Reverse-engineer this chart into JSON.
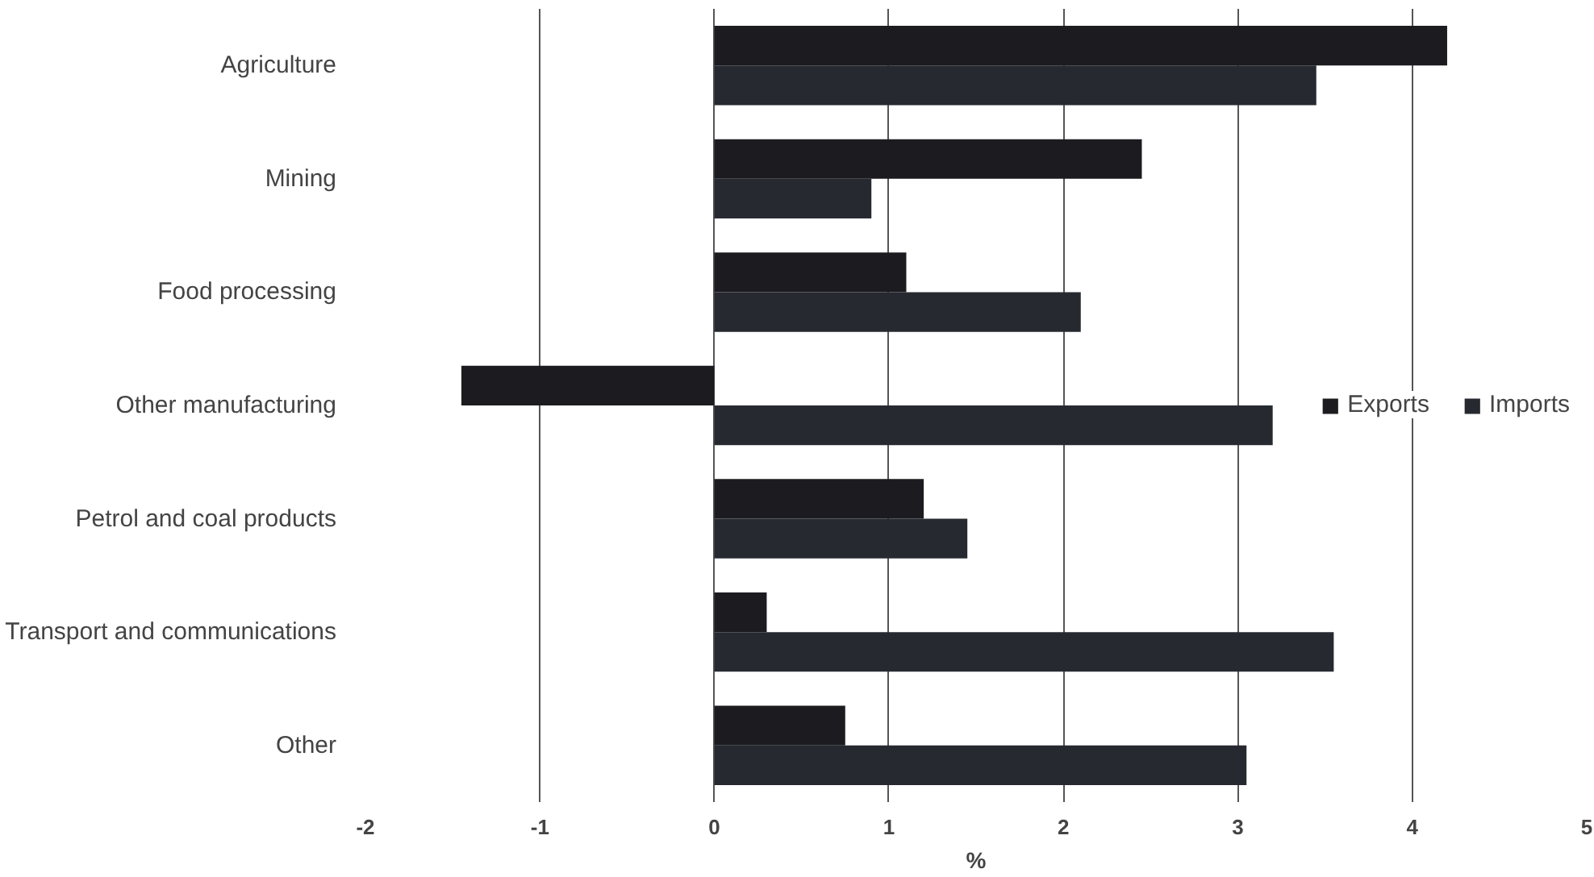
{
  "chart_data": {
    "type": "bar",
    "orientation": "horizontal",
    "xlabel": "%",
    "categories": [
      "Agriculture",
      "Mining",
      "Food processing",
      "Other manufacturing",
      "Petrol and coal products",
      "Transport and communications",
      "Other"
    ],
    "series": [
      {
        "name": "Exports",
        "color": "#1c1c20",
        "values": [
          4.2,
          2.45,
          1.1,
          -1.45,
          1.2,
          0.3,
          0.75
        ]
      },
      {
        "name": "Imports",
        "color": "#262a30",
        "values": [
          3.45,
          0.9,
          2.1,
          3.2,
          1.45,
          3.55,
          3.05
        ]
      }
    ],
    "xlim": [
      -2,
      5
    ],
    "xticks": [
      -2,
      -1,
      0,
      1,
      2,
      3,
      4,
      5
    ],
    "grid": "x",
    "legend": "right"
  }
}
